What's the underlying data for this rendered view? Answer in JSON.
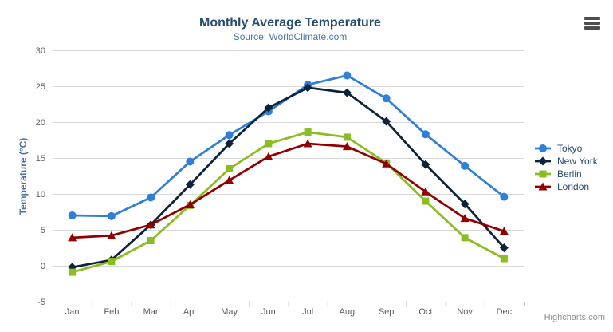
{
  "credits": "Highcharts.com",
  "icons": {
    "export_menu": "hamburger-icon"
  },
  "theme": {
    "background": "#ffffff",
    "title_color": "#274b6d",
    "subtitle_color": "#4d759e",
    "axis_title_color": "#4d759e",
    "tick_label_color": "#606060",
    "axis_line_color": "#c0d0e0",
    "gridline_color": "#d8d8d8",
    "legend_text_color": "#274b6d",
    "credits_color": "#909090",
    "export_icon_color": "#4d4d4d"
  },
  "chart_data": {
    "type": "line",
    "title": "Monthly Average Temperature",
    "subtitle": "Source: WorldClimate.com",
    "xlabel": "",
    "ylabel": "Temperature (°C)",
    "categories": [
      "Jan",
      "Feb",
      "Mar",
      "Apr",
      "May",
      "Jun",
      "Jul",
      "Aug",
      "Sep",
      "Oct",
      "Nov",
      "Dec"
    ],
    "ylim": [
      -5,
      30
    ],
    "ytick_interval": 5,
    "yticks": [
      -5,
      0,
      5,
      10,
      15,
      20,
      25,
      30
    ],
    "grid": true,
    "legend_position": "right",
    "series": [
      {
        "name": "Tokyo",
        "color": "#2f7ed8",
        "marker": "circle",
        "values": [
          7.0,
          6.9,
          9.5,
          14.5,
          18.2,
          21.5,
          25.2,
          26.5,
          23.3,
          18.3,
          13.9,
          9.6
        ]
      },
      {
        "name": "New York",
        "color": "#0d233a",
        "marker": "diamond",
        "values": [
          -0.2,
          0.8,
          5.7,
          11.3,
          17.0,
          22.0,
          24.8,
          24.1,
          20.1,
          14.1,
          8.6,
          2.5
        ]
      },
      {
        "name": "Berlin",
        "color": "#8bbc21",
        "marker": "square",
        "values": [
          -0.9,
          0.6,
          3.5,
          8.4,
          13.5,
          17.0,
          18.6,
          17.9,
          14.3,
          9.0,
          3.9,
          1.0
        ]
      },
      {
        "name": "London",
        "color": "#910000",
        "marker": "triangle",
        "values": [
          3.9,
          4.2,
          5.7,
          8.5,
          11.9,
          15.2,
          17.0,
          16.6,
          14.2,
          10.3,
          6.6,
          4.8
        ]
      }
    ]
  }
}
